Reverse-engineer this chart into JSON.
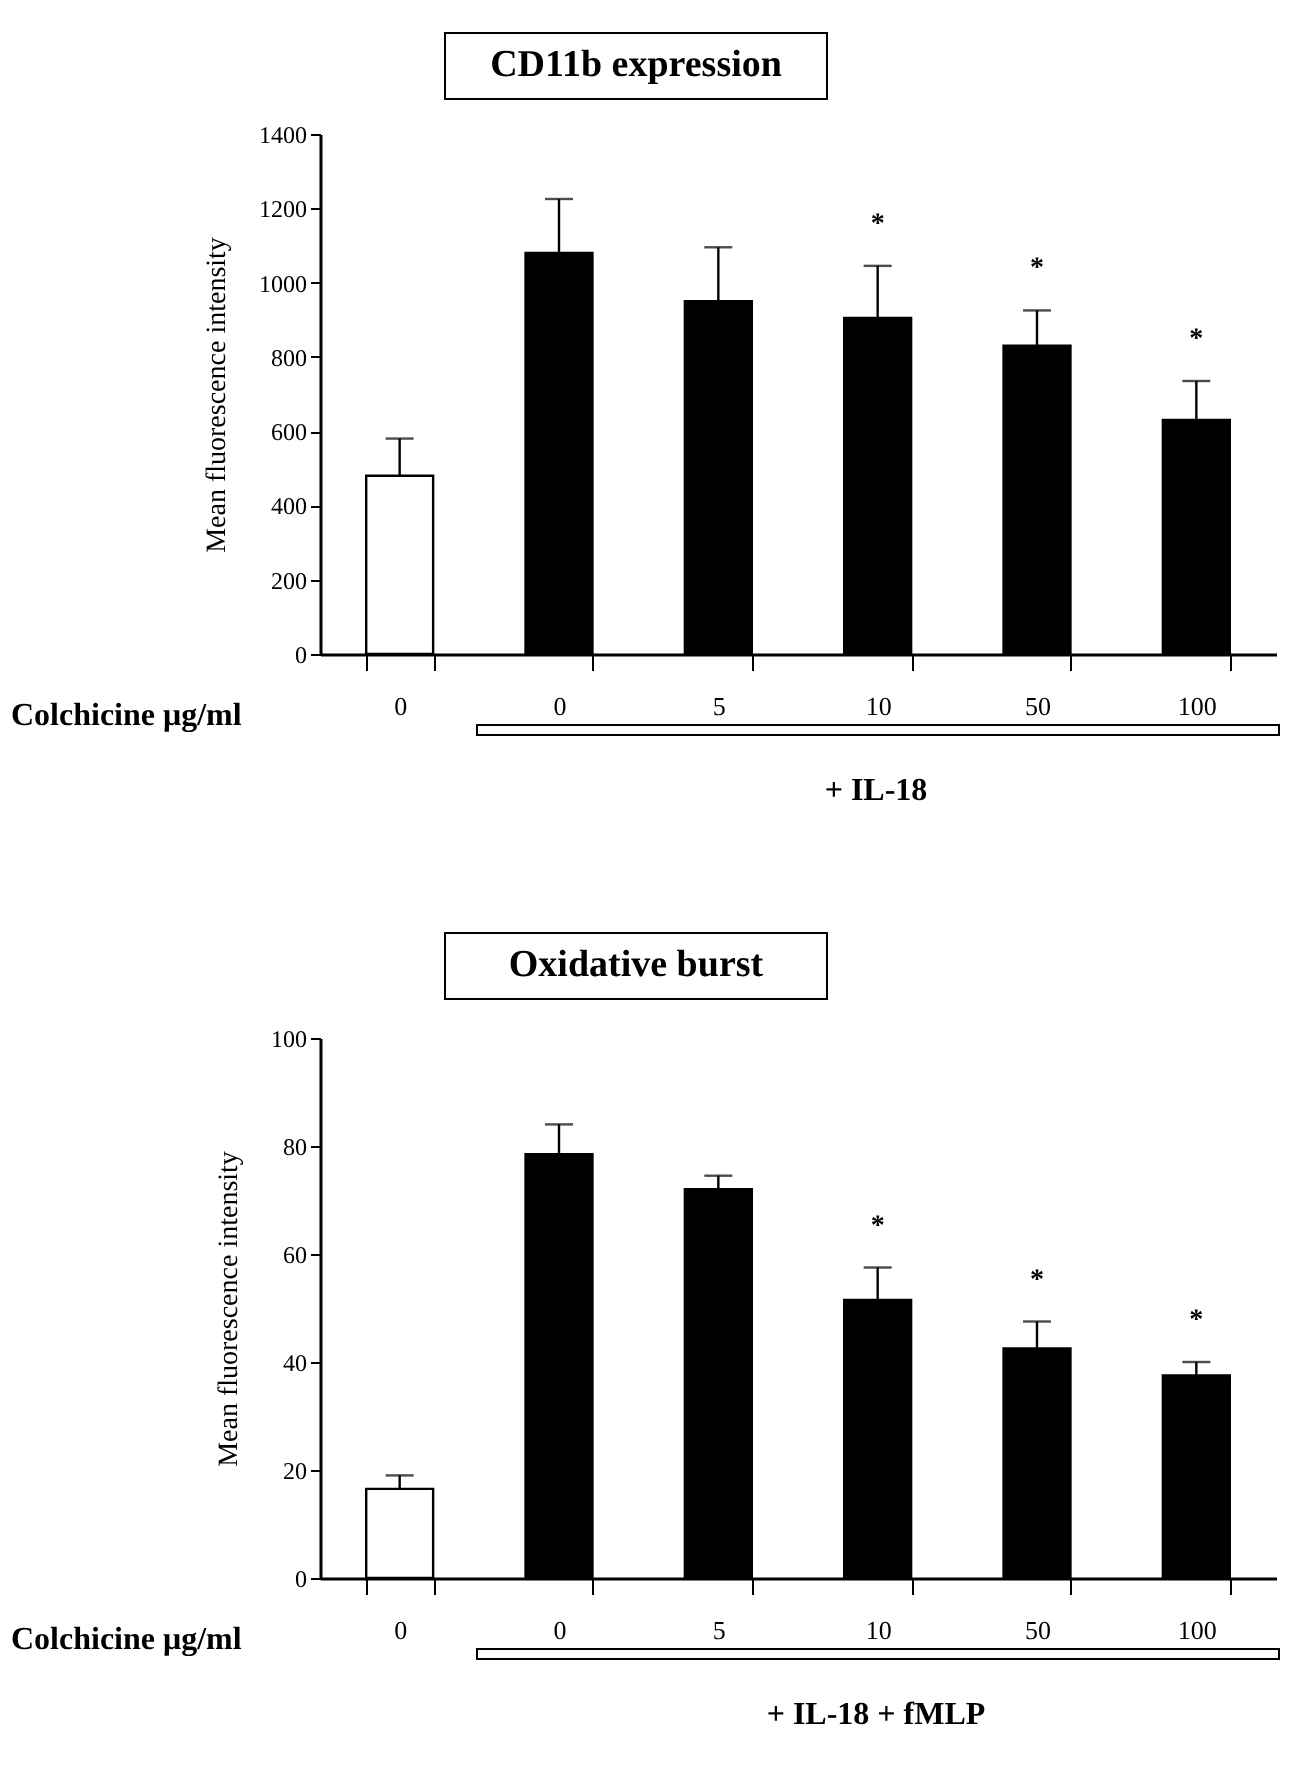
{
  "chart_data": [
    {
      "type": "bar",
      "title": "CD11b expression",
      "xlabel": "Colchicine μg/ml",
      "ylabel": "Mean fluorescence intensity",
      "categories": [
        "0",
        "0",
        "5",
        "10",
        "50",
        "100"
      ],
      "values": [
        480,
        1080,
        950,
        905,
        830,
        630
      ],
      "errors": [
        [
          480,
          580
        ],
        [
          1080,
          1225
        ],
        [
          950,
          1095
        ],
        [
          905,
          1045
        ],
        [
          830,
          925
        ],
        [
          630,
          735
        ]
      ],
      "colors": [
        "#ffffff",
        "#000000",
        "#000000",
        "#000000",
        "#000000",
        "#000000"
      ],
      "ylim": [
        0,
        1400
      ],
      "yticks": [
        0,
        200,
        400,
        600,
        800,
        1000,
        1200,
        1400
      ],
      "grid": false,
      "annotations": [
        {
          "text": "*",
          "x": "10",
          "y": 905
        },
        {
          "text": "*",
          "x": "50",
          "y": 830
        },
        {
          "text": "*",
          "x": "100",
          "y": 630
        },
        "+ IL-18"
      ]
    },
    {
      "type": "bar",
      "title": "Oxidative burst",
      "xlabel": "Colchicine μg/ml",
      "ylabel": "Mean fluorescence intensity",
      "categories": [
        "0",
        "0",
        "5",
        "10",
        "50",
        "100"
      ],
      "values": [
        16.5,
        78.5,
        72,
        51.5,
        42.5,
        37.5
      ],
      "errors": [
        [
          16.5,
          19
        ],
        [
          78.5,
          84
        ],
        [
          72,
          74.5
        ],
        [
          51.5,
          57.5
        ],
        [
          42.5,
          47.5
        ],
        [
          37.5,
          40
        ]
      ],
      "colors": [
        "#ffffff",
        "#000000",
        "#000000",
        "#000000",
        "#000000",
        "#000000"
      ],
      "ylim": [
        0,
        100
      ],
      "yticks": [
        0,
        20,
        40,
        60,
        80,
        100
      ],
      "grid": false,
      "annotations": [
        {
          "text": "*",
          "x": "10",
          "y": 51.5
        },
        {
          "text": "*",
          "x": "50",
          "y": 42.5
        },
        {
          "text": "*",
          "x": "100",
          "y": 37.5
        },
        "+ IL-18 + fMLP"
      ]
    }
  ]
}
